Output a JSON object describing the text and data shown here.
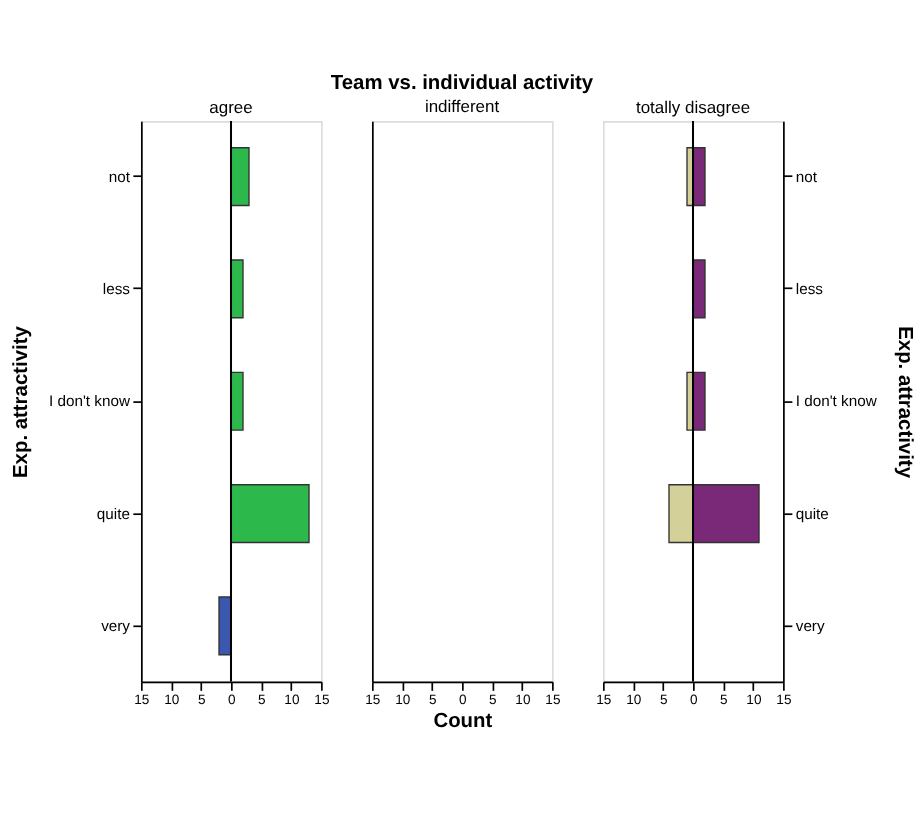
{
  "chart_data": [
    {
      "type": "bar",
      "orientation": "horizontal",
      "stacked": true,
      "subtitle": "agree",
      "ylabel": "Exp. attractivity",
      "categories": [
        "not",
        "less",
        "I don't know",
        "quite",
        "very"
      ],
      "xlim": [
        -15,
        15
      ],
      "xticks": [
        {
          "value": -15,
          "label": "15"
        },
        {
          "value": -10,
          "label": "10"
        },
        {
          "value": -5,
          "label": "5"
        },
        0,
        5,
        10,
        15
      ],
      "grid": false,
      "ref_lines": [
        {
          "axis": "x",
          "value": 0,
          "color": "#000000"
        }
      ],
      "series": [
        {
          "color": "#2db84b",
          "values": [
            3,
            2,
            2,
            13,
            null
          ]
        },
        {
          "color": "#3a58b0",
          "values": [
            null,
            null,
            null,
            null,
            -2
          ]
        }
      ]
    },
    {
      "type": "bar",
      "orientation": "horizontal",
      "title": "Team vs. individual activity",
      "subtitle": "indifferent",
      "categories": [
        "not",
        "less",
        "I don't know",
        "quite",
        "very"
      ],
      "xlabel": "Count",
      "xlim": [
        -15,
        15
      ],
      "xticks": [
        {
          "value": -15,
          "label": "15"
        },
        {
          "value": -10,
          "label": "10"
        },
        {
          "value": -5,
          "label": "5"
        },
        0,
        5,
        10,
        15
      ],
      "grid": false,
      "tick_labels": "x"
    },
    {
      "type": "bar",
      "orientation": "horizontal",
      "stacked": true,
      "subtitle": "totally disagree",
      "y2label": "Exp. attractivity",
      "categories": [
        "not",
        "less",
        "I don't know",
        "quite",
        "very"
      ],
      "xlim": [
        -15,
        15
      ],
      "xticks": [
        {
          "value": -15,
          "label": "15"
        },
        {
          "value": -10,
          "label": "10"
        },
        {
          "value": -5,
          "label": "5"
        },
        0,
        5,
        10,
        15
      ],
      "grid": false,
      "ref_lines": [
        {
          "axis": "x",
          "value": 0,
          "color": "#000000"
        }
      ],
      "series": [
        {
          "color": "#d4d09a",
          "values": [
            -1,
            null,
            -1,
            -4,
            null
          ]
        },
        {
          "color": "#7a2878",
          "values": [
            2,
            2,
            2,
            11,
            null
          ]
        }
      ]
    }
  ]
}
